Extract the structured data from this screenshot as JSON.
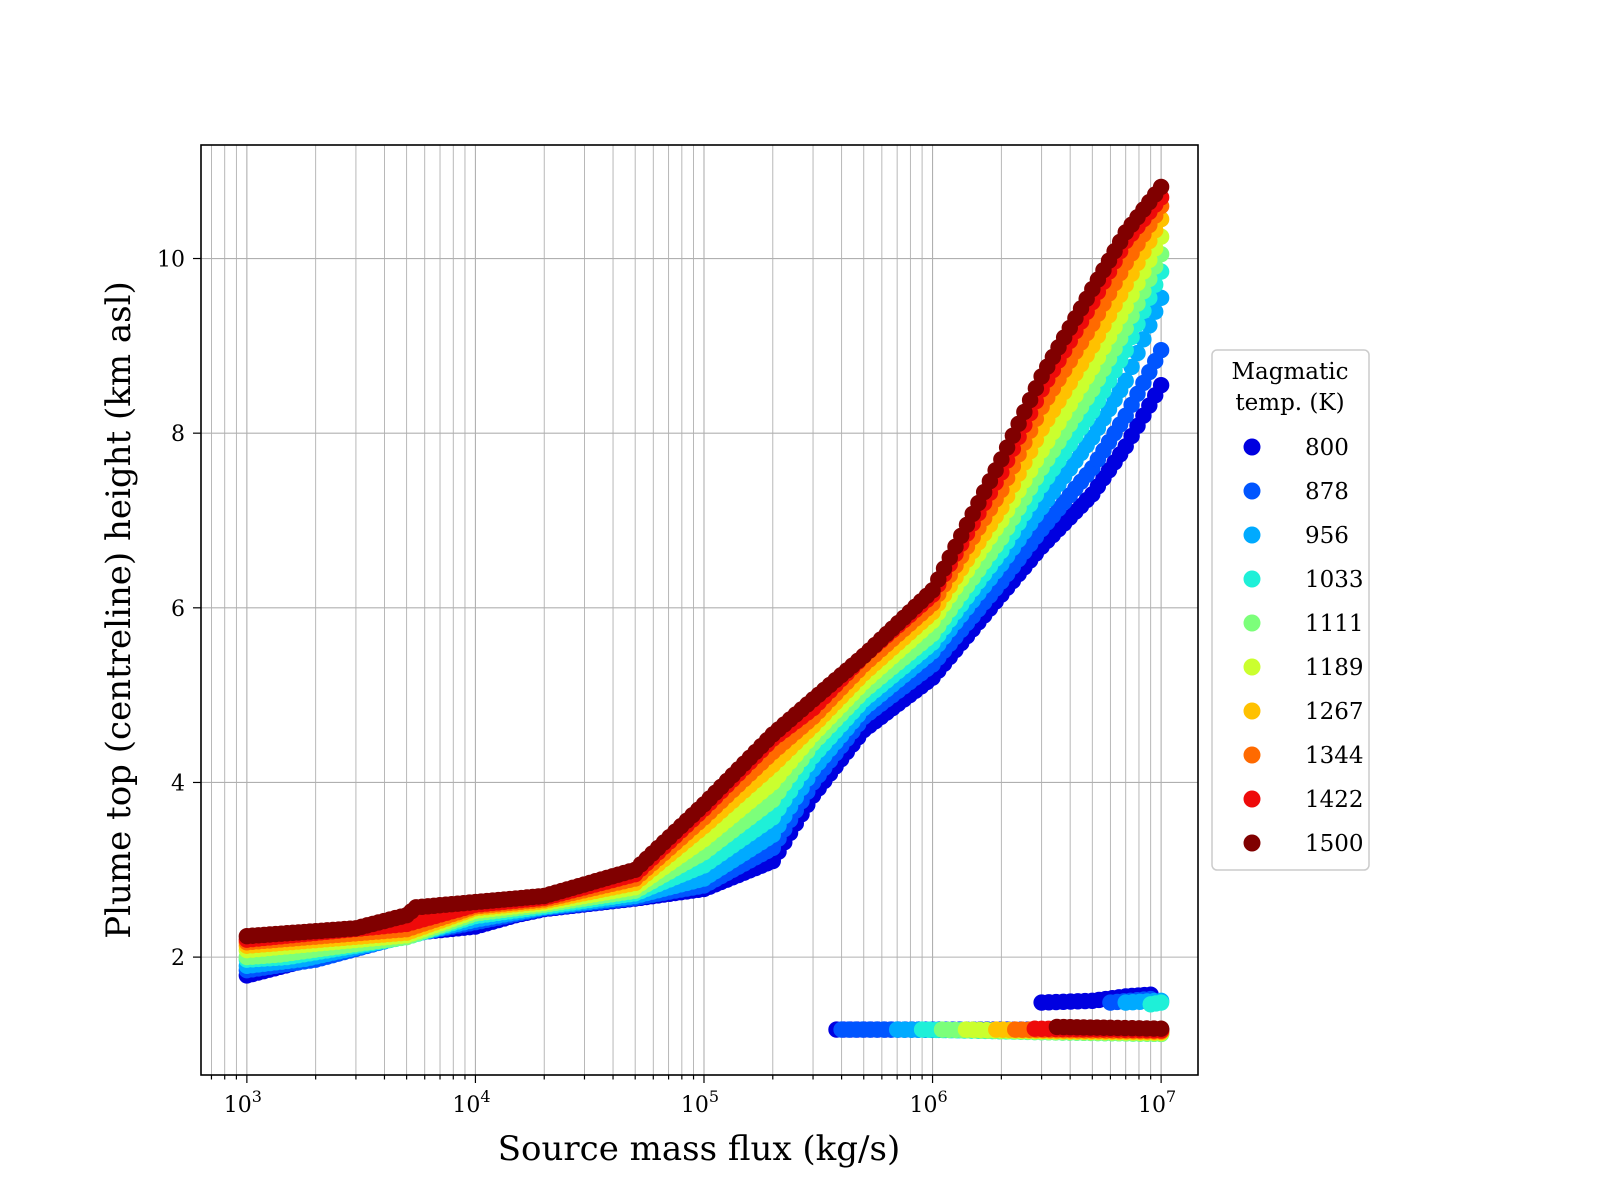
{
  "chart_data": {
    "type": "scatter",
    "title": "",
    "xlabel": "Source mass flux (kg/s)",
    "ylabel": "Plume top (centreline) height (km asl)",
    "xscale": "log",
    "xlim": [
      630,
      14500
    ],
    "xlim_note": "",
    "xlim_real": [
      630,
      14500000
    ],
    "ylim": [
      0.65,
      11.3
    ],
    "grid": true,
    "x_ticks": [
      {
        "value": 1000,
        "base": "10",
        "exp": "3"
      },
      {
        "value": 10000,
        "base": "10",
        "exp": "4"
      },
      {
        "value": 100000,
        "base": "10",
        "exp": "5"
      },
      {
        "value": 1000000,
        "base": "10",
        "exp": "6"
      },
      {
        "value": 10000000,
        "base": "10",
        "exp": "7"
      }
    ],
    "y_ticks": [
      "2",
      "4",
      "6",
      "8",
      "10"
    ],
    "legend": {
      "title_line1": "Magmatic",
      "title_line2": "temp. (K)",
      "placement": "right"
    },
    "series": [
      {
        "name": "800",
        "color": "#0000e0",
        "upper": [
          [
            1000,
            1.79
          ],
          [
            2200,
            2.02
          ],
          [
            5000,
            2.27
          ],
          [
            10000,
            2.35
          ],
          [
            15000,
            2.48
          ],
          [
            20000,
            2.55
          ],
          [
            50000,
            2.67
          ],
          [
            100000,
            2.78
          ],
          [
            200000,
            3.1
          ],
          [
            300000,
            3.85
          ],
          [
            500000,
            4.6
          ],
          [
            1000000,
            5.2
          ],
          [
            2000000,
            6.15
          ],
          [
            3000000,
            6.7
          ],
          [
            5000000,
            7.3
          ],
          [
            7000000,
            7.85
          ],
          [
            10000000,
            8.55
          ]
        ],
        "lower": [
          [
            380000,
            1.17
          ],
          [
            1000000,
            1.17
          ],
          [
            3000000,
            1.17
          ],
          [
            10000000,
            1.17
          ]
        ],
        "lower2": [
          [
            3000000,
            1.48
          ],
          [
            5000000,
            1.5
          ],
          [
            7000000,
            1.55
          ],
          [
            9000000,
            1.57
          ]
        ]
      },
      {
        "name": "878",
        "color": "#0055ff",
        "upper": [
          [
            1000,
            1.85
          ],
          [
            2000,
            1.97
          ],
          [
            5000,
            2.25
          ],
          [
            10000,
            2.4
          ],
          [
            20000,
            2.56
          ],
          [
            50000,
            2.68
          ],
          [
            100000,
            2.82
          ],
          [
            200000,
            3.25
          ],
          [
            300000,
            4.0
          ],
          [
            500000,
            4.75
          ],
          [
            1000000,
            5.35
          ],
          [
            2000000,
            6.3
          ],
          [
            3000000,
            6.9
          ],
          [
            5000000,
            7.6
          ],
          [
            7000000,
            8.2
          ],
          [
            10000000,
            8.95
          ]
        ],
        "lower": [
          [
            400000,
            1.17
          ],
          [
            1000000,
            1.17
          ],
          [
            10000000,
            1.16
          ]
        ],
        "lower2": [
          [
            6000000,
            1.48
          ],
          [
            9000000,
            1.52
          ]
        ]
      },
      {
        "name": "956",
        "color": "#00aaff",
        "upper": [
          [
            1000,
            1.9
          ],
          [
            1800,
            1.98
          ],
          [
            5000,
            2.24
          ],
          [
            10000,
            2.43
          ],
          [
            20000,
            2.57
          ],
          [
            50000,
            2.7
          ],
          [
            100000,
            2.9
          ],
          [
            200000,
            3.4
          ],
          [
            300000,
            4.15
          ],
          [
            500000,
            4.85
          ],
          [
            1000000,
            5.5
          ],
          [
            2000000,
            6.5
          ],
          [
            3000000,
            7.15
          ],
          [
            5000000,
            7.95
          ],
          [
            7000000,
            8.6
          ],
          [
            10000000,
            9.55
          ]
        ],
        "lower": [
          [
            700000,
            1.17
          ],
          [
            2000000,
            1.16
          ],
          [
            10000000,
            1.14
          ]
        ],
        "lower2": [
          [
            7000000,
            1.48
          ],
          [
            10000000,
            1.5
          ]
        ]
      },
      {
        "name": "1033",
        "color": "#1ef0d8",
        "upper": [
          [
            1000,
            1.97
          ],
          [
            1500,
            2.0
          ],
          [
            5000,
            2.23
          ],
          [
            10000,
            2.47
          ],
          [
            20000,
            2.58
          ],
          [
            50000,
            2.73
          ],
          [
            100000,
            3.05
          ],
          [
            200000,
            3.6
          ],
          [
            300000,
            4.3
          ],
          [
            500000,
            4.95
          ],
          [
            1000000,
            5.6
          ],
          [
            2000000,
            6.65
          ],
          [
            3000000,
            7.4
          ],
          [
            5000000,
            8.25
          ],
          [
            7000000,
            8.95
          ],
          [
            10000000,
            9.85
          ]
        ],
        "lower": [
          [
            900000,
            1.17
          ],
          [
            3000000,
            1.14
          ],
          [
            10000000,
            1.12
          ]
        ],
        "lower2": [
          [
            9000000,
            1.46
          ],
          [
            10000000,
            1.48
          ]
        ]
      },
      {
        "name": "1111",
        "color": "#7cff7a",
        "upper": [
          [
            1000,
            2.0
          ],
          [
            1400,
            2.03
          ],
          [
            5000,
            2.23
          ],
          [
            10000,
            2.5
          ],
          [
            20000,
            2.6
          ],
          [
            50000,
            2.76
          ],
          [
            100000,
            3.2
          ],
          [
            200000,
            3.8
          ],
          [
            300000,
            4.45
          ],
          [
            500000,
            5.05
          ],
          [
            1000000,
            5.7
          ],
          [
            2000000,
            6.8
          ],
          [
            3000000,
            7.6
          ],
          [
            5000000,
            8.5
          ],
          [
            7000000,
            9.2
          ],
          [
            10000000,
            10.05
          ]
        ],
        "lower": [
          [
            1100000,
            1.17
          ],
          [
            3000000,
            1.14
          ],
          [
            10000000,
            1.12
          ]
        ]
      },
      {
        "name": "1189",
        "color": "#cbff2e",
        "upper": [
          [
            1000,
            2.08
          ],
          [
            5000,
            2.25
          ],
          [
            10000,
            2.53
          ],
          [
            20000,
            2.62
          ],
          [
            50000,
            2.8
          ],
          [
            100000,
            3.35
          ],
          [
            200000,
            4.0
          ],
          [
            300000,
            4.55
          ],
          [
            500000,
            5.15
          ],
          [
            1000000,
            5.85
          ],
          [
            2000000,
            7.0
          ],
          [
            3000000,
            7.8
          ],
          [
            5000000,
            8.75
          ],
          [
            7000000,
            9.45
          ],
          [
            10000000,
            10.25
          ]
        ],
        "lower": [
          [
            1400000,
            1.17
          ],
          [
            3000000,
            1.15
          ],
          [
            10000000,
            1.13
          ]
        ]
      },
      {
        "name": "1267",
        "color": "#ffc100",
        "upper": [
          [
            1000,
            2.13
          ],
          [
            5000,
            2.28
          ],
          [
            10000,
            2.56
          ],
          [
            20000,
            2.64
          ],
          [
            50000,
            2.85
          ],
          [
            100000,
            3.5
          ],
          [
            200000,
            4.2
          ],
          [
            300000,
            4.65
          ],
          [
            500000,
            5.25
          ],
          [
            1000000,
            5.95
          ],
          [
            2000000,
            7.15
          ],
          [
            3000000,
            8.05
          ],
          [
            5000000,
            9.0
          ],
          [
            7000000,
            9.7
          ],
          [
            10000000,
            10.45
          ]
        ],
        "lower": [
          [
            1900000,
            1.17
          ],
          [
            4000000,
            1.15
          ],
          [
            10000000,
            1.14
          ]
        ]
      },
      {
        "name": "1344",
        "color": "#ff6a00",
        "upper": [
          [
            1000,
            2.17
          ],
          [
            5000,
            2.32
          ],
          [
            10000,
            2.58
          ],
          [
            20000,
            2.66
          ],
          [
            50000,
            2.9
          ],
          [
            100000,
            3.6
          ],
          [
            200000,
            4.35
          ],
          [
            300000,
            4.75
          ],
          [
            500000,
            5.35
          ],
          [
            1000000,
            6.05
          ],
          [
            2000000,
            7.35
          ],
          [
            3000000,
            8.3
          ],
          [
            5000000,
            9.25
          ],
          [
            7000000,
            9.95
          ],
          [
            10000000,
            10.6
          ]
        ],
        "lower": [
          [
            2300000,
            1.17
          ],
          [
            5000000,
            1.16
          ],
          [
            10000000,
            1.15
          ]
        ]
      },
      {
        "name": "1422",
        "color": "#ee0a0a",
        "upper": [
          [
            1000,
            2.2
          ],
          [
            5000,
            2.38
          ],
          [
            10000,
            2.6
          ],
          [
            20000,
            2.68
          ],
          [
            50000,
            2.95
          ],
          [
            100000,
            3.7
          ],
          [
            200000,
            4.5
          ],
          [
            300000,
            4.85
          ],
          [
            500000,
            5.45
          ],
          [
            1000000,
            6.15
          ],
          [
            2000000,
            7.55
          ],
          [
            3000000,
            8.5
          ],
          [
            5000000,
            9.5
          ],
          [
            7000000,
            10.2
          ],
          [
            10000000,
            10.7
          ]
        ],
        "lower": [
          [
            2800000,
            1.18
          ],
          [
            6000000,
            1.17
          ],
          [
            10000000,
            1.16
          ]
        ]
      },
      {
        "name": "1500",
        "color": "#800000",
        "upper": [
          [
            1000,
            2.24
          ],
          [
            3000,
            2.33
          ],
          [
            5000,
            2.48
          ],
          [
            5500,
            2.57
          ],
          [
            10000,
            2.63
          ],
          [
            20000,
            2.7
          ],
          [
            50000,
            3.0
          ],
          [
            100000,
            3.75
          ],
          [
            200000,
            4.55
          ],
          [
            300000,
            4.95
          ],
          [
            500000,
            5.45
          ],
          [
            1000000,
            6.2
          ],
          [
            2000000,
            7.7
          ],
          [
            3000000,
            8.65
          ],
          [
            5000000,
            9.65
          ],
          [
            7000000,
            10.3
          ],
          [
            10000000,
            10.82
          ]
        ],
        "lower": [
          [
            3500000,
            1.2
          ],
          [
            6000000,
            1.19
          ],
          [
            10000000,
            1.18
          ]
        ]
      }
    ]
  }
}
